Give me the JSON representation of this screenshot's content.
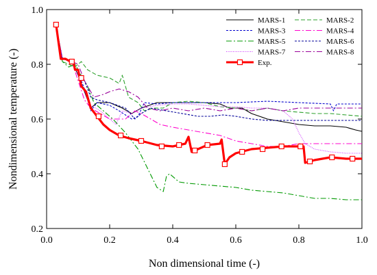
{
  "chart_data": {
    "type": "line",
    "xlabel": "Non dimensional time (-)",
    "ylabel": "Nondimensional temperature (-)",
    "xlim": [
      0.0,
      1.0
    ],
    "ylim": [
      0.2,
      1.0
    ],
    "x_ticks": [
      "0.0",
      "0.2",
      "0.4",
      "0.6",
      "0.8",
      "1.0"
    ],
    "y_ticks": [
      "0.2",
      "0.4",
      "0.6",
      "0.8",
      "1.0"
    ],
    "grid": false,
    "legend_position": "top-right",
    "series": [
      {
        "name": "MARS-1",
        "color": "#000000",
        "dash": "",
        "points": [
          [
            0.03,
            0.94
          ],
          [
            0.05,
            0.82
          ],
          [
            0.08,
            0.81
          ],
          [
            0.1,
            0.76
          ],
          [
            0.12,
            0.7
          ],
          [
            0.14,
            0.64
          ],
          [
            0.16,
            0.66
          ],
          [
            0.2,
            0.66
          ],
          [
            0.24,
            0.64
          ],
          [
            0.27,
            0.62
          ],
          [
            0.3,
            0.64
          ],
          [
            0.35,
            0.66
          ],
          [
            0.4,
            0.66
          ],
          [
            0.5,
            0.66
          ],
          [
            0.55,
            0.655
          ],
          [
            0.58,
            0.64
          ],
          [
            0.62,
            0.64
          ],
          [
            0.65,
            0.62
          ],
          [
            0.7,
            0.6
          ],
          [
            0.75,
            0.59
          ],
          [
            0.8,
            0.58
          ],
          [
            0.85,
            0.575
          ],
          [
            0.9,
            0.575
          ],
          [
            0.95,
            0.57
          ],
          [
            0.98,
            0.56
          ],
          [
            1.0,
            0.555
          ]
        ]
      },
      {
        "name": "MARS-2",
        "color": "#2ca02c",
        "dash": "6,3",
        "points": [
          [
            0.03,
            0.94
          ],
          [
            0.05,
            0.81
          ],
          [
            0.07,
            0.8
          ],
          [
            0.09,
            0.79
          ],
          [
            0.11,
            0.81
          ],
          [
            0.13,
            0.78
          ],
          [
            0.16,
            0.76
          ],
          [
            0.2,
            0.75
          ],
          [
            0.23,
            0.73
          ],
          [
            0.24,
            0.76
          ],
          [
            0.26,
            0.68
          ],
          [
            0.29,
            0.66
          ],
          [
            0.31,
            0.63
          ],
          [
            0.34,
            0.64
          ],
          [
            0.37,
            0.64
          ],
          [
            0.4,
            0.66
          ],
          [
            0.45,
            0.665
          ],
          [
            0.5,
            0.66
          ],
          [
            0.55,
            0.645
          ],
          [
            0.6,
            0.64
          ],
          [
            0.65,
            0.63
          ],
          [
            0.7,
            0.64
          ],
          [
            0.75,
            0.63
          ],
          [
            0.8,
            0.625
          ],
          [
            0.85,
            0.62
          ],
          [
            0.9,
            0.62
          ],
          [
            0.95,
            0.615
          ],
          [
            1.0,
            0.61
          ]
        ]
      },
      {
        "name": "MARS-3",
        "color": "#0000cc",
        "dash": "3,2",
        "points": [
          [
            0.03,
            0.94
          ],
          [
            0.05,
            0.82
          ],
          [
            0.08,
            0.81
          ],
          [
            0.1,
            0.77
          ],
          [
            0.12,
            0.71
          ],
          [
            0.14,
            0.63
          ],
          [
            0.16,
            0.66
          ],
          [
            0.2,
            0.65
          ],
          [
            0.23,
            0.63
          ],
          [
            0.27,
            0.6
          ],
          [
            0.29,
            0.61
          ],
          [
            0.31,
            0.66
          ],
          [
            0.35,
            0.655
          ],
          [
            0.4,
            0.66
          ],
          [
            0.5,
            0.66
          ],
          [
            0.6,
            0.66
          ],
          [
            0.7,
            0.665
          ],
          [
            0.8,
            0.66
          ],
          [
            0.9,
            0.655
          ],
          [
            0.91,
            0.63
          ],
          [
            0.92,
            0.655
          ],
          [
            1.0,
            0.655
          ]
        ]
      },
      {
        "name": "MARS-4",
        "color": "#ff00cc",
        "dash": "8,3,2,3",
        "points": [
          [
            0.03,
            0.94
          ],
          [
            0.05,
            0.82
          ],
          [
            0.08,
            0.81
          ],
          [
            0.1,
            0.74
          ],
          [
            0.12,
            0.67
          ],
          [
            0.14,
            0.64
          ],
          [
            0.17,
            0.62
          ],
          [
            0.2,
            0.6
          ],
          [
            0.25,
            0.6
          ],
          [
            0.28,
            0.63
          ],
          [
            0.3,
            0.62
          ],
          [
            0.33,
            0.6
          ],
          [
            0.36,
            0.58
          ],
          [
            0.4,
            0.57
          ],
          [
            0.45,
            0.56
          ],
          [
            0.5,
            0.55
          ],
          [
            0.55,
            0.54
          ],
          [
            0.6,
            0.52
          ],
          [
            0.65,
            0.51
          ],
          [
            0.7,
            0.5
          ],
          [
            0.75,
            0.5
          ],
          [
            0.8,
            0.51
          ],
          [
            0.85,
            0.51
          ],
          [
            0.9,
            0.51
          ],
          [
            0.95,
            0.51
          ],
          [
            1.0,
            0.51
          ]
        ]
      },
      {
        "name": "MARS-5",
        "color": "#009900",
        "dash": "8,3,2,3",
        "points": [
          [
            0.03,
            0.94
          ],
          [
            0.05,
            0.81
          ],
          [
            0.07,
            0.79
          ],
          [
            0.09,
            0.8
          ],
          [
            0.11,
            0.76
          ],
          [
            0.13,
            0.72
          ],
          [
            0.15,
            0.66
          ],
          [
            0.18,
            0.63
          ],
          [
            0.21,
            0.6
          ],
          [
            0.25,
            0.55
          ],
          [
            0.29,
            0.49
          ],
          [
            0.32,
            0.42
          ],
          [
            0.35,
            0.35
          ],
          [
            0.37,
            0.335
          ],
          [
            0.38,
            0.39
          ],
          [
            0.39,
            0.4
          ],
          [
            0.42,
            0.37
          ],
          [
            0.45,
            0.365
          ],
          [
            0.5,
            0.36
          ],
          [
            0.55,
            0.355
          ],
          [
            0.6,
            0.35
          ],
          [
            0.65,
            0.34
          ],
          [
            0.7,
            0.335
          ],
          [
            0.75,
            0.33
          ],
          [
            0.8,
            0.32
          ],
          [
            0.85,
            0.31
          ],
          [
            0.9,
            0.31
          ],
          [
            0.95,
            0.305
          ],
          [
            1.0,
            0.305
          ]
        ]
      },
      {
        "name": "MARS-6",
        "color": "#000099",
        "dash": "3,2",
        "points": [
          [
            0.03,
            0.94
          ],
          [
            0.05,
            0.82
          ],
          [
            0.08,
            0.81
          ],
          [
            0.1,
            0.77
          ],
          [
            0.12,
            0.74
          ],
          [
            0.14,
            0.68
          ],
          [
            0.16,
            0.67
          ],
          [
            0.2,
            0.66
          ],
          [
            0.25,
            0.64
          ],
          [
            0.28,
            0.6
          ],
          [
            0.3,
            0.62
          ],
          [
            0.33,
            0.64
          ],
          [
            0.38,
            0.63
          ],
          [
            0.43,
            0.62
          ],
          [
            0.48,
            0.61
          ],
          [
            0.52,
            0.61
          ],
          [
            0.56,
            0.615
          ],
          [
            0.6,
            0.61
          ],
          [
            0.65,
            0.6
          ],
          [
            0.7,
            0.595
          ],
          [
            0.8,
            0.595
          ],
          [
            0.9,
            0.595
          ],
          [
            1.0,
            0.595
          ]
        ]
      },
      {
        "name": "MARS-7",
        "color": "#cc33ff",
        "dash": "1,1.5",
        "points": [
          [
            0.03,
            0.94
          ],
          [
            0.05,
            0.82
          ],
          [
            0.08,
            0.81
          ],
          [
            0.1,
            0.76
          ],
          [
            0.12,
            0.7
          ],
          [
            0.14,
            0.65
          ],
          [
            0.17,
            0.63
          ],
          [
            0.2,
            0.6
          ],
          [
            0.22,
            0.58
          ],
          [
            0.24,
            0.63
          ],
          [
            0.27,
            0.62
          ],
          [
            0.3,
            0.64
          ],
          [
            0.35,
            0.65
          ],
          [
            0.4,
            0.655
          ],
          [
            0.45,
            0.655
          ],
          [
            0.5,
            0.65
          ],
          [
            0.55,
            0.645
          ],
          [
            0.6,
            0.645
          ],
          [
            0.65,
            0.64
          ],
          [
            0.7,
            0.64
          ],
          [
            0.75,
            0.63
          ],
          [
            0.78,
            0.6
          ],
          [
            0.8,
            0.55
          ],
          [
            0.82,
            0.51
          ],
          [
            0.85,
            0.49
          ],
          [
            0.9,
            0.48
          ],
          [
            0.95,
            0.475
          ],
          [
            1.0,
            0.475
          ]
        ]
      },
      {
        "name": "MARS-8",
        "color": "#990099",
        "dash": "8,3,2,3",
        "points": [
          [
            0.03,
            0.94
          ],
          [
            0.05,
            0.82
          ],
          [
            0.08,
            0.81
          ],
          [
            0.1,
            0.8
          ],
          [
            0.12,
            0.74
          ],
          [
            0.15,
            0.68
          ],
          [
            0.18,
            0.69
          ],
          [
            0.2,
            0.7
          ],
          [
            0.23,
            0.71
          ],
          [
            0.26,
            0.7
          ],
          [
            0.29,
            0.68
          ],
          [
            0.32,
            0.64
          ],
          [
            0.36,
            0.63
          ],
          [
            0.4,
            0.64
          ],
          [
            0.45,
            0.63
          ],
          [
            0.5,
            0.64
          ],
          [
            0.55,
            0.63
          ],
          [
            0.6,
            0.64
          ],
          [
            0.65,
            0.63
          ],
          [
            0.7,
            0.64
          ],
          [
            0.75,
            0.63
          ],
          [
            0.8,
            0.64
          ],
          [
            0.85,
            0.64
          ],
          [
            0.9,
            0.64
          ],
          [
            0.95,
            0.64
          ],
          [
            1.0,
            0.64
          ]
        ]
      },
      {
        "name": "Exp.",
        "color": "#ff0000",
        "dash": "",
        "thick": true,
        "markers": true,
        "points": [
          [
            0.03,
            0.945
          ],
          [
            0.045,
            0.82
          ],
          [
            0.06,
            0.82
          ],
          [
            0.075,
            0.81
          ],
          [
            0.085,
            0.81
          ],
          [
            0.09,
            0.78
          ],
          [
            0.1,
            0.78
          ],
          [
            0.11,
            0.72
          ],
          [
            0.125,
            0.7
          ],
          [
            0.14,
            0.64
          ],
          [
            0.16,
            0.61
          ],
          [
            0.18,
            0.58
          ],
          [
            0.2,
            0.56
          ],
          [
            0.23,
            0.54
          ],
          [
            0.26,
            0.53
          ],
          [
            0.3,
            0.52
          ],
          [
            0.35,
            0.505
          ],
          [
            0.4,
            0.5
          ],
          [
            0.44,
            0.51
          ],
          [
            0.45,
            0.535
          ],
          [
            0.46,
            0.48
          ],
          [
            0.48,
            0.49
          ],
          [
            0.51,
            0.505
          ],
          [
            0.55,
            0.51
          ],
          [
            0.555,
            0.525
          ],
          [
            0.565,
            0.435
          ],
          [
            0.58,
            0.46
          ],
          [
            0.6,
            0.475
          ],
          [
            0.65,
            0.49
          ],
          [
            0.7,
            0.495
          ],
          [
            0.75,
            0.5
          ],
          [
            0.8,
            0.5
          ],
          [
            0.815,
            0.5
          ],
          [
            0.82,
            0.44
          ],
          [
            0.85,
            0.45
          ],
          [
            0.9,
            0.46
          ],
          [
            0.95,
            0.455
          ],
          [
            1.0,
            0.455
          ]
        ],
        "marker_points": [
          [
            0.03,
            0.945
          ],
          [
            0.08,
            0.81
          ],
          [
            0.11,
            0.75
          ],
          [
            0.165,
            0.61
          ],
          [
            0.235,
            0.54
          ],
          [
            0.3,
            0.52
          ],
          [
            0.365,
            0.5
          ],
          [
            0.42,
            0.505
          ],
          [
            0.47,
            0.485
          ],
          [
            0.51,
            0.505
          ],
          [
            0.565,
            0.435
          ],
          [
            0.62,
            0.48
          ],
          [
            0.685,
            0.49
          ],
          [
            0.745,
            0.5
          ],
          [
            0.805,
            0.5
          ],
          [
            0.835,
            0.445
          ],
          [
            0.905,
            0.46
          ],
          [
            0.97,
            0.455
          ]
        ]
      }
    ]
  }
}
